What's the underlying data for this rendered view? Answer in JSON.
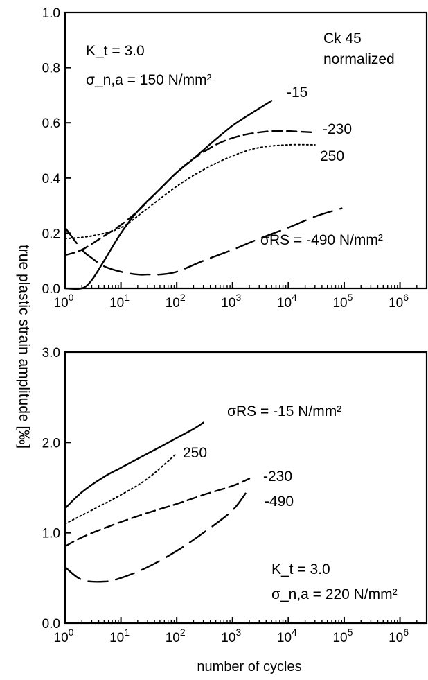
{
  "figure": {
    "ylabel": "true plastic strain amplitude [‰]",
    "xlabel": "number of cycles"
  },
  "chart_data": [
    {
      "type": "line",
      "title": "",
      "xlabel": "",
      "ylabel": "true plastic strain amplitude [‰]",
      "xscale": "log",
      "xlim": [
        1,
        3000000
      ],
      "ylim": [
        0.0,
        1.0
      ],
      "x_ticks": [
        "10^0",
        "10^1",
        "10^2",
        "10^3",
        "10^4",
        "10^5",
        "10^6"
      ],
      "y_ticks": [
        "0.0",
        "0.2",
        "0.4",
        "0.6",
        "0.8",
        "1.0"
      ],
      "annotations": {
        "kt": "K_t = 3.0",
        "sigma": "σ_n,a = 150 N/mm²",
        "material": "Ck 45",
        "condition": "normalized"
      },
      "series": [
        {
          "name": "-15",
          "style": "solid",
          "x": [
            1,
            2,
            3,
            5,
            10,
            20,
            50,
            100,
            200,
            500,
            1000,
            2000,
            5000
          ],
          "y": [
            0.0,
            0.0,
            0.03,
            0.1,
            0.2,
            0.28,
            0.36,
            0.42,
            0.47,
            0.54,
            0.59,
            0.63,
            0.68
          ]
        },
        {
          "name": "-230",
          "style": "dashed",
          "x": [
            1,
            2,
            5,
            10,
            20,
            50,
            100,
            200,
            500,
            1000,
            2000,
            5000,
            10000,
            30000
          ],
          "y": [
            0.12,
            0.14,
            0.19,
            0.23,
            0.28,
            0.36,
            0.42,
            0.47,
            0.52,
            0.545,
            0.56,
            0.57,
            0.57,
            0.565
          ]
        },
        {
          "name": "250",
          "style": "dotted",
          "x": [
            1,
            3,
            10,
            30,
            100,
            300,
            1000,
            3000,
            10000,
            30000
          ],
          "y": [
            0.18,
            0.19,
            0.22,
            0.29,
            0.37,
            0.43,
            0.48,
            0.51,
            0.52,
            0.52
          ]
        },
        {
          "name": "σRS = -490 N/mm²",
          "style": "longdash",
          "x": [
            1,
            2,
            3,
            5,
            10,
            20,
            30,
            50,
            100,
            300,
            1000,
            3000,
            10000,
            30000,
            90000
          ],
          "y": [
            0.22,
            0.14,
            0.11,
            0.08,
            0.06,
            0.05,
            0.05,
            0.05,
            0.06,
            0.1,
            0.14,
            0.18,
            0.22,
            0.26,
            0.29
          ]
        }
      ],
      "series_labels": [
        "-15",
        "-230",
        "250",
        "σRS = -490 N/mm²"
      ]
    },
    {
      "type": "line",
      "title": "",
      "xlabel": "number of cycles",
      "ylabel": "true plastic strain amplitude [‰]",
      "xscale": "log",
      "xlim": [
        1,
        3000000
      ],
      "ylim": [
        0.0,
        3.0
      ],
      "x_ticks": [
        "10^0",
        "10^1",
        "10^2",
        "10^3",
        "10^4",
        "10^5",
        "10^6"
      ],
      "y_ticks": [
        "0.0",
        "1.0",
        "2.0",
        "3.0"
      ],
      "annotations": {
        "kt": "K_t = 3.0",
        "sigma": "σ_n,a = 220 N/mm²"
      },
      "series": [
        {
          "name": "σRS = -15 N/mm²",
          "style": "solid",
          "x": [
            1,
            2,
            5,
            10,
            20,
            50,
            100,
            200,
            300
          ],
          "y": [
            1.27,
            1.45,
            1.62,
            1.72,
            1.82,
            1.95,
            2.05,
            2.15,
            2.22
          ]
        },
        {
          "name": "250",
          "style": "dotted",
          "x": [
            1,
            3,
            10,
            30,
            100
          ],
          "y": [
            1.1,
            1.25,
            1.42,
            1.6,
            1.88
          ]
        },
        {
          "name": "-230",
          "style": "dashed",
          "x": [
            1,
            2,
            5,
            10,
            30,
            100,
            300,
            1000,
            2000
          ],
          "y": [
            0.85,
            0.95,
            1.05,
            1.12,
            1.22,
            1.32,
            1.42,
            1.52,
            1.6
          ]
        },
        {
          "name": "-490",
          "style": "longdash",
          "x": [
            1,
            2,
            5,
            10,
            30,
            100,
            300,
            1000,
            2000
          ],
          "y": [
            0.62,
            0.48,
            0.46,
            0.5,
            0.62,
            0.8,
            1.0,
            1.25,
            1.5
          ]
        }
      ],
      "series_labels": [
        "σRS = -15 N/mm²",
        "250",
        "-230",
        "-490"
      ]
    }
  ]
}
